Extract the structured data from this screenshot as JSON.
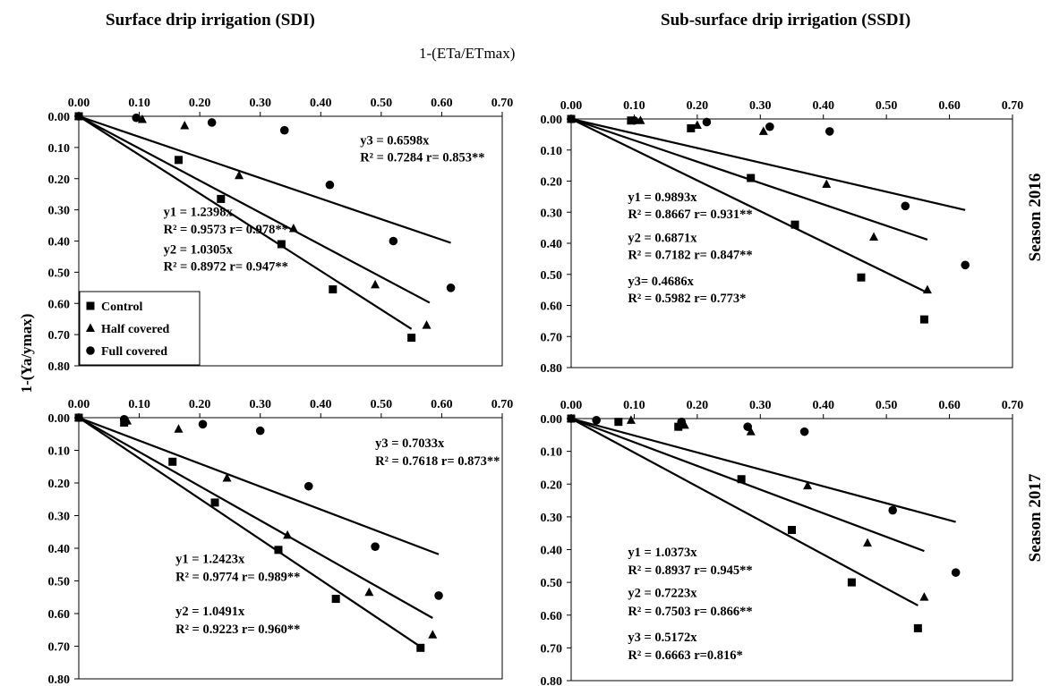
{
  "headers": {
    "left": "Surface drip irrigation (SDI)",
    "right": "Sub-surface drip irrigation (SSDI)",
    "x_axis_title": "1-(ETa/ETmax)",
    "y_axis_title": "1-(Ya/ymax)",
    "season_top": "Season 2016",
    "season_bottom": "Season 2017"
  },
  "legend": [
    {
      "label": "Control",
      "marker": "square"
    },
    {
      "label": "Half covered",
      "marker": "triangle"
    },
    {
      "label": "Full covered",
      "marker": "circle"
    }
  ],
  "chart_data": [
    {
      "type": "scatter",
      "title": "Surface drip irrigation (SDI)",
      "season": "Season 2016",
      "xlabel": "1-(ETa/ETmax)",
      "ylabel": "1-(Ya/ymax)",
      "xlim": [
        0,
        0.7
      ],
      "ylim": [
        0,
        0.8
      ],
      "y_inverted": true,
      "x_axis_position": "top",
      "x_ticks": [
        "0.00",
        "0.10",
        "0.20",
        "0.30",
        "0.40",
        "0.50",
        "0.60",
        "0.70"
      ],
      "y_ticks": [
        "0.00",
        "0.10",
        "0.20",
        "0.30",
        "0.40",
        "0.50",
        "0.60",
        "0.70",
        "0.80"
      ],
      "legend": "bottom-left",
      "series": [
        {
          "name": "Control",
          "marker": "square",
          "slope": 1.2398,
          "line_end_x": 0.55,
          "points": [
            [
              0,
              0
            ],
            [
              0.165,
              0.14
            ],
            [
              0.235,
              0.265
            ],
            [
              0.335,
              0.41
            ],
            [
              0.42,
              0.555
            ],
            [
              0.55,
              0.71
            ]
          ]
        },
        {
          "name": "Half covered",
          "marker": "triangle",
          "slope": 1.0305,
          "line_end_x": 0.58,
          "points": [
            [
              0,
              0
            ],
            [
              0.105,
              0.01
            ],
            [
              0.175,
              0.03
            ],
            [
              0.265,
              0.19
            ],
            [
              0.355,
              0.36
            ],
            [
              0.49,
              0.54
            ],
            [
              0.575,
              0.67
            ]
          ]
        },
        {
          "name": "Full covered",
          "marker": "circle",
          "slope": 0.6598,
          "line_end_x": 0.615,
          "points": [
            [
              0,
              0
            ],
            [
              0.095,
              0.005
            ],
            [
              0.22,
              0.02
            ],
            [
              0.34,
              0.045
            ],
            [
              0.415,
              0.22
            ],
            [
              0.52,
              0.4
            ],
            [
              0.615,
              0.55
            ]
          ]
        }
      ],
      "annotations": [
        {
          "text": "y3 = 0.6598x",
          "x": 0.465,
          "y": 0.09
        },
        {
          "text": "R² = 0.7284  r= 0.853**",
          "x": 0.465,
          "y": 0.145
        },
        {
          "text": "y1 = 1.2398x",
          "x": 0.14,
          "y": 0.32
        },
        {
          "text": "R² = 0.9573  r= 0.978**",
          "x": 0.14,
          "y": 0.375
        },
        {
          "text": "y2 = 1.0305x",
          "x": 0.14,
          "y": 0.44
        },
        {
          "text": "R² = 0.8972  r= 0.947**",
          "x": 0.14,
          "y": 0.495
        }
      ]
    },
    {
      "type": "scatter",
      "title": "Sub-surface drip irrigation (SSDI)",
      "season": "Season 2016",
      "xlabel": "1-(ETa/ETmax)",
      "ylabel": "1-(Ya/ymax)",
      "xlim": [
        0,
        0.7
      ],
      "ylim": [
        0,
        0.8
      ],
      "y_inverted": true,
      "x_axis_position": "top",
      "x_ticks": [
        "0.00",
        "0.10",
        "0.20",
        "0.30",
        "0.40",
        "0.50",
        "0.60",
        "0.70"
      ],
      "y_ticks": [
        "0.00",
        "0.10",
        "0.20",
        "0.30",
        "0.40",
        "0.50",
        "0.60",
        "0.70",
        "0.80"
      ],
      "series": [
        {
          "name": "Control",
          "marker": "square",
          "slope": 0.9893,
          "line_end_x": 0.565,
          "points": [
            [
              0,
              0
            ],
            [
              0.095,
              0.005
            ],
            [
              0.19,
              0.03
            ],
            [
              0.285,
              0.19
            ],
            [
              0.355,
              0.34
            ],
            [
              0.46,
              0.51
            ],
            [
              0.56,
              0.645
            ]
          ]
        },
        {
          "name": "Half covered",
          "marker": "triangle",
          "slope": 0.6871,
          "line_end_x": 0.565,
          "points": [
            [
              0,
              0
            ],
            [
              0.11,
              0.005
            ],
            [
              0.2,
              0.02
            ],
            [
              0.305,
              0.04
            ],
            [
              0.405,
              0.21
            ],
            [
              0.48,
              0.38
            ],
            [
              0.565,
              0.55
            ]
          ]
        },
        {
          "name": "Full covered",
          "marker": "circle",
          "slope": 0.4686,
          "line_end_x": 0.625,
          "points": [
            [
              0,
              0
            ],
            [
              0.1,
              0.005
            ],
            [
              0.215,
              0.01
            ],
            [
              0.315,
              0.025
            ],
            [
              0.41,
              0.04
            ],
            [
              0.53,
              0.28
            ],
            [
              0.625,
              0.47
            ]
          ]
        }
      ],
      "annotations": [
        {
          "text": "y1 = 0.9893x",
          "x": 0.09,
          "y": 0.265
        },
        {
          "text": "R² = 0.8667  r= 0.931**",
          "x": 0.09,
          "y": 0.32
        },
        {
          "text": "y2 = 0.6871x",
          "x": 0.09,
          "y": 0.395
        },
        {
          "text": "R² = 0.7182  r= 0.847**",
          "x": 0.09,
          "y": 0.45
        },
        {
          "text": "y3= 0.4686x",
          "x": 0.09,
          "y": 0.535
        },
        {
          "text": "R² = 0.5982  r= 0.773*",
          "x": 0.09,
          "y": 0.59
        }
      ]
    },
    {
      "type": "scatter",
      "title": "Surface drip irrigation (SDI)",
      "season": "Season 2017",
      "xlabel": "1-(ETa/ETmax)",
      "ylabel": "1-(Ya/ymax)",
      "xlim": [
        0,
        0.7
      ],
      "ylim": [
        0,
        0.8
      ],
      "y_inverted": true,
      "x_axis_position": "top",
      "x_ticks": [
        "0.00",
        "0.10",
        "0.20",
        "0.30",
        "0.40",
        "0.50",
        "0.60",
        "0.70"
      ],
      "y_ticks": [
        "0.00",
        "0.10",
        "0.20",
        "0.30",
        "0.40",
        "0.50",
        "0.60",
        "0.70",
        "0.80"
      ],
      "series": [
        {
          "name": "Control",
          "marker": "square",
          "slope": 1.2423,
          "line_end_x": 0.565,
          "points": [
            [
              0,
              0
            ],
            [
              0.075,
              0.015
            ],
            [
              0.155,
              0.135
            ],
            [
              0.225,
              0.26
            ],
            [
              0.33,
              0.405
            ],
            [
              0.425,
              0.555
            ],
            [
              0.565,
              0.705
            ]
          ]
        },
        {
          "name": "Half covered",
          "marker": "triangle",
          "slope": 1.0491,
          "line_end_x": 0.585,
          "points": [
            [
              0,
              0
            ],
            [
              0.08,
              0.01
            ],
            [
              0.165,
              0.035
            ],
            [
              0.245,
              0.185
            ],
            [
              0.345,
              0.36
            ],
            [
              0.48,
              0.535
            ],
            [
              0.585,
              0.665
            ]
          ]
        },
        {
          "name": "Full covered",
          "marker": "circle",
          "slope": 0.7033,
          "line_end_x": 0.595,
          "points": [
            [
              0,
              0
            ],
            [
              0.075,
              0.005
            ],
            [
              0.205,
              0.02
            ],
            [
              0.3,
              0.04
            ],
            [
              0.38,
              0.21
            ],
            [
              0.49,
              0.395
            ],
            [
              0.595,
              0.545
            ]
          ]
        }
      ],
      "annotations": [
        {
          "text": "y3 = 0.7033x",
          "x": 0.49,
          "y": 0.09
        },
        {
          "text": "R² = 0.7618  r= 0.873**",
          "x": 0.49,
          "y": 0.145
        },
        {
          "text": "y1 = 1.2423x",
          "x": 0.16,
          "y": 0.445
        },
        {
          "text": "R² = 0.9774  r= 0.989**",
          "x": 0.16,
          "y": 0.5
        },
        {
          "text": "y2 = 1.0491x",
          "x": 0.16,
          "y": 0.605
        },
        {
          "text": "R² = 0.9223  r= 0.960**",
          "x": 0.16,
          "y": 0.66
        }
      ]
    },
    {
      "type": "scatter",
      "title": "Sub-surface drip irrigation (SSDI)",
      "season": "Season 2017",
      "xlabel": "1-(ETa/ETmax)",
      "ylabel": "1-(Ya/ymax)",
      "xlim": [
        0,
        0.7
      ],
      "ylim": [
        0,
        0.8
      ],
      "y_inverted": true,
      "x_axis_position": "top",
      "x_ticks": [
        "0.00",
        "0.10",
        "0.20",
        "0.30",
        "0.40",
        "0.50",
        "0.60",
        "0.70"
      ],
      "y_ticks": [
        "0.00",
        "0.10",
        "0.20",
        "0.30",
        "0.40",
        "0.50",
        "0.60",
        "0.70",
        "0.80"
      ],
      "series": [
        {
          "name": "Control",
          "marker": "square",
          "slope": 1.0373,
          "line_end_x": 0.55,
          "points": [
            [
              0,
              0
            ],
            [
              0.075,
              0.01
            ],
            [
              0.17,
              0.025
            ],
            [
              0.27,
              0.185
            ],
            [
              0.35,
              0.34
            ],
            [
              0.445,
              0.5
            ],
            [
              0.55,
              0.64
            ]
          ]
        },
        {
          "name": "Half covered",
          "marker": "triangle",
          "slope": 0.7223,
          "line_end_x": 0.56,
          "points": [
            [
              0,
              0
            ],
            [
              0.095,
              0.005
            ],
            [
              0.18,
              0.02
            ],
            [
              0.285,
              0.04
            ],
            [
              0.375,
              0.205
            ],
            [
              0.47,
              0.38
            ],
            [
              0.56,
              0.545
            ]
          ]
        },
        {
          "name": "Full covered",
          "marker": "circle",
          "slope": 0.5172,
          "line_end_x": 0.61,
          "points": [
            [
              0,
              0
            ],
            [
              0.04,
              0.005
            ],
            [
              0.175,
              0.01
            ],
            [
              0.28,
              0.025
            ],
            [
              0.37,
              0.04
            ],
            [
              0.51,
              0.28
            ],
            [
              0.61,
              0.47
            ]
          ]
        }
      ],
      "annotations": [
        {
          "text": "y1 = 1.0373x",
          "x": 0.09,
          "y": 0.42
        },
        {
          "text": "R² = 0.8937  r= 0.945**",
          "x": 0.09,
          "y": 0.475
        },
        {
          "text": "y2 = 0.7223x",
          "x": 0.09,
          "y": 0.545
        },
        {
          "text": "R² = 0.7503  r= 0.866**",
          "x": 0.09,
          "y": 0.6
        },
        {
          "text": "y3 = 0.5172x",
          "x": 0.09,
          "y": 0.68
        },
        {
          "text": "R² = 0.6663  r=0.816*",
          "x": 0.09,
          "y": 0.735
        }
      ]
    }
  ]
}
